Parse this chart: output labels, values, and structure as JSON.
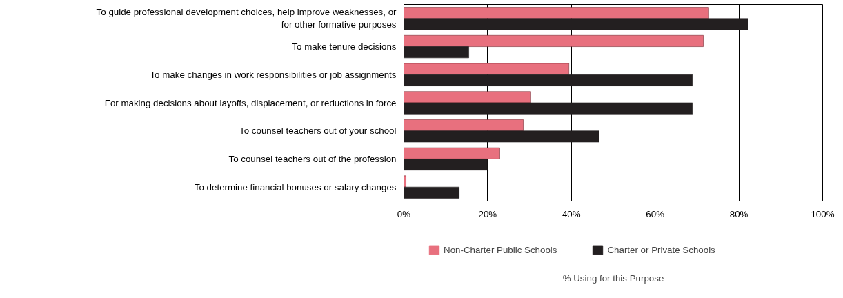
{
  "chart_data": {
    "type": "bar",
    "orientation": "horizontal",
    "annotations": [
      "% Using for this Purpose"
    ],
    "categories": [
      "To guide professional development choices, help improve weaknesses, or for other formative purposes",
      "To make tenure decisions",
      "To make changes in work responsibilities or job assignments",
      "For making decisions about layoffs, displacement, or reductions in force",
      "To counsel teachers out of your school",
      "To counsel teachers out of the profession",
      "To determine financial bonuses or salary changes"
    ],
    "series": [
      {
        "name": "Non-Charter Public Schools",
        "color": "#e8707e",
        "values": [
          72.8,
          71.5,
          39.4,
          30.3,
          28.5,
          22.9,
          0.5
        ]
      },
      {
        "name": "Charter or Private Schools",
        "color": "#231f20",
        "values": [
          82.2,
          15.5,
          68.9,
          68.9,
          46.6,
          19.9,
          13.2
        ]
      }
    ],
    "xlim": [
      0,
      100
    ],
    "xticks": [
      {
        "value": 0,
        "label": "0%"
      },
      {
        "value": 20,
        "label": "20%"
      },
      {
        "value": 40,
        "label": "40%"
      },
      {
        "value": 60,
        "label": "60%"
      },
      {
        "value": 80,
        "label": "80%"
      },
      {
        "value": 100,
        "label": "100%"
      }
    ],
    "grid": "x",
    "legend": "bottom"
  }
}
